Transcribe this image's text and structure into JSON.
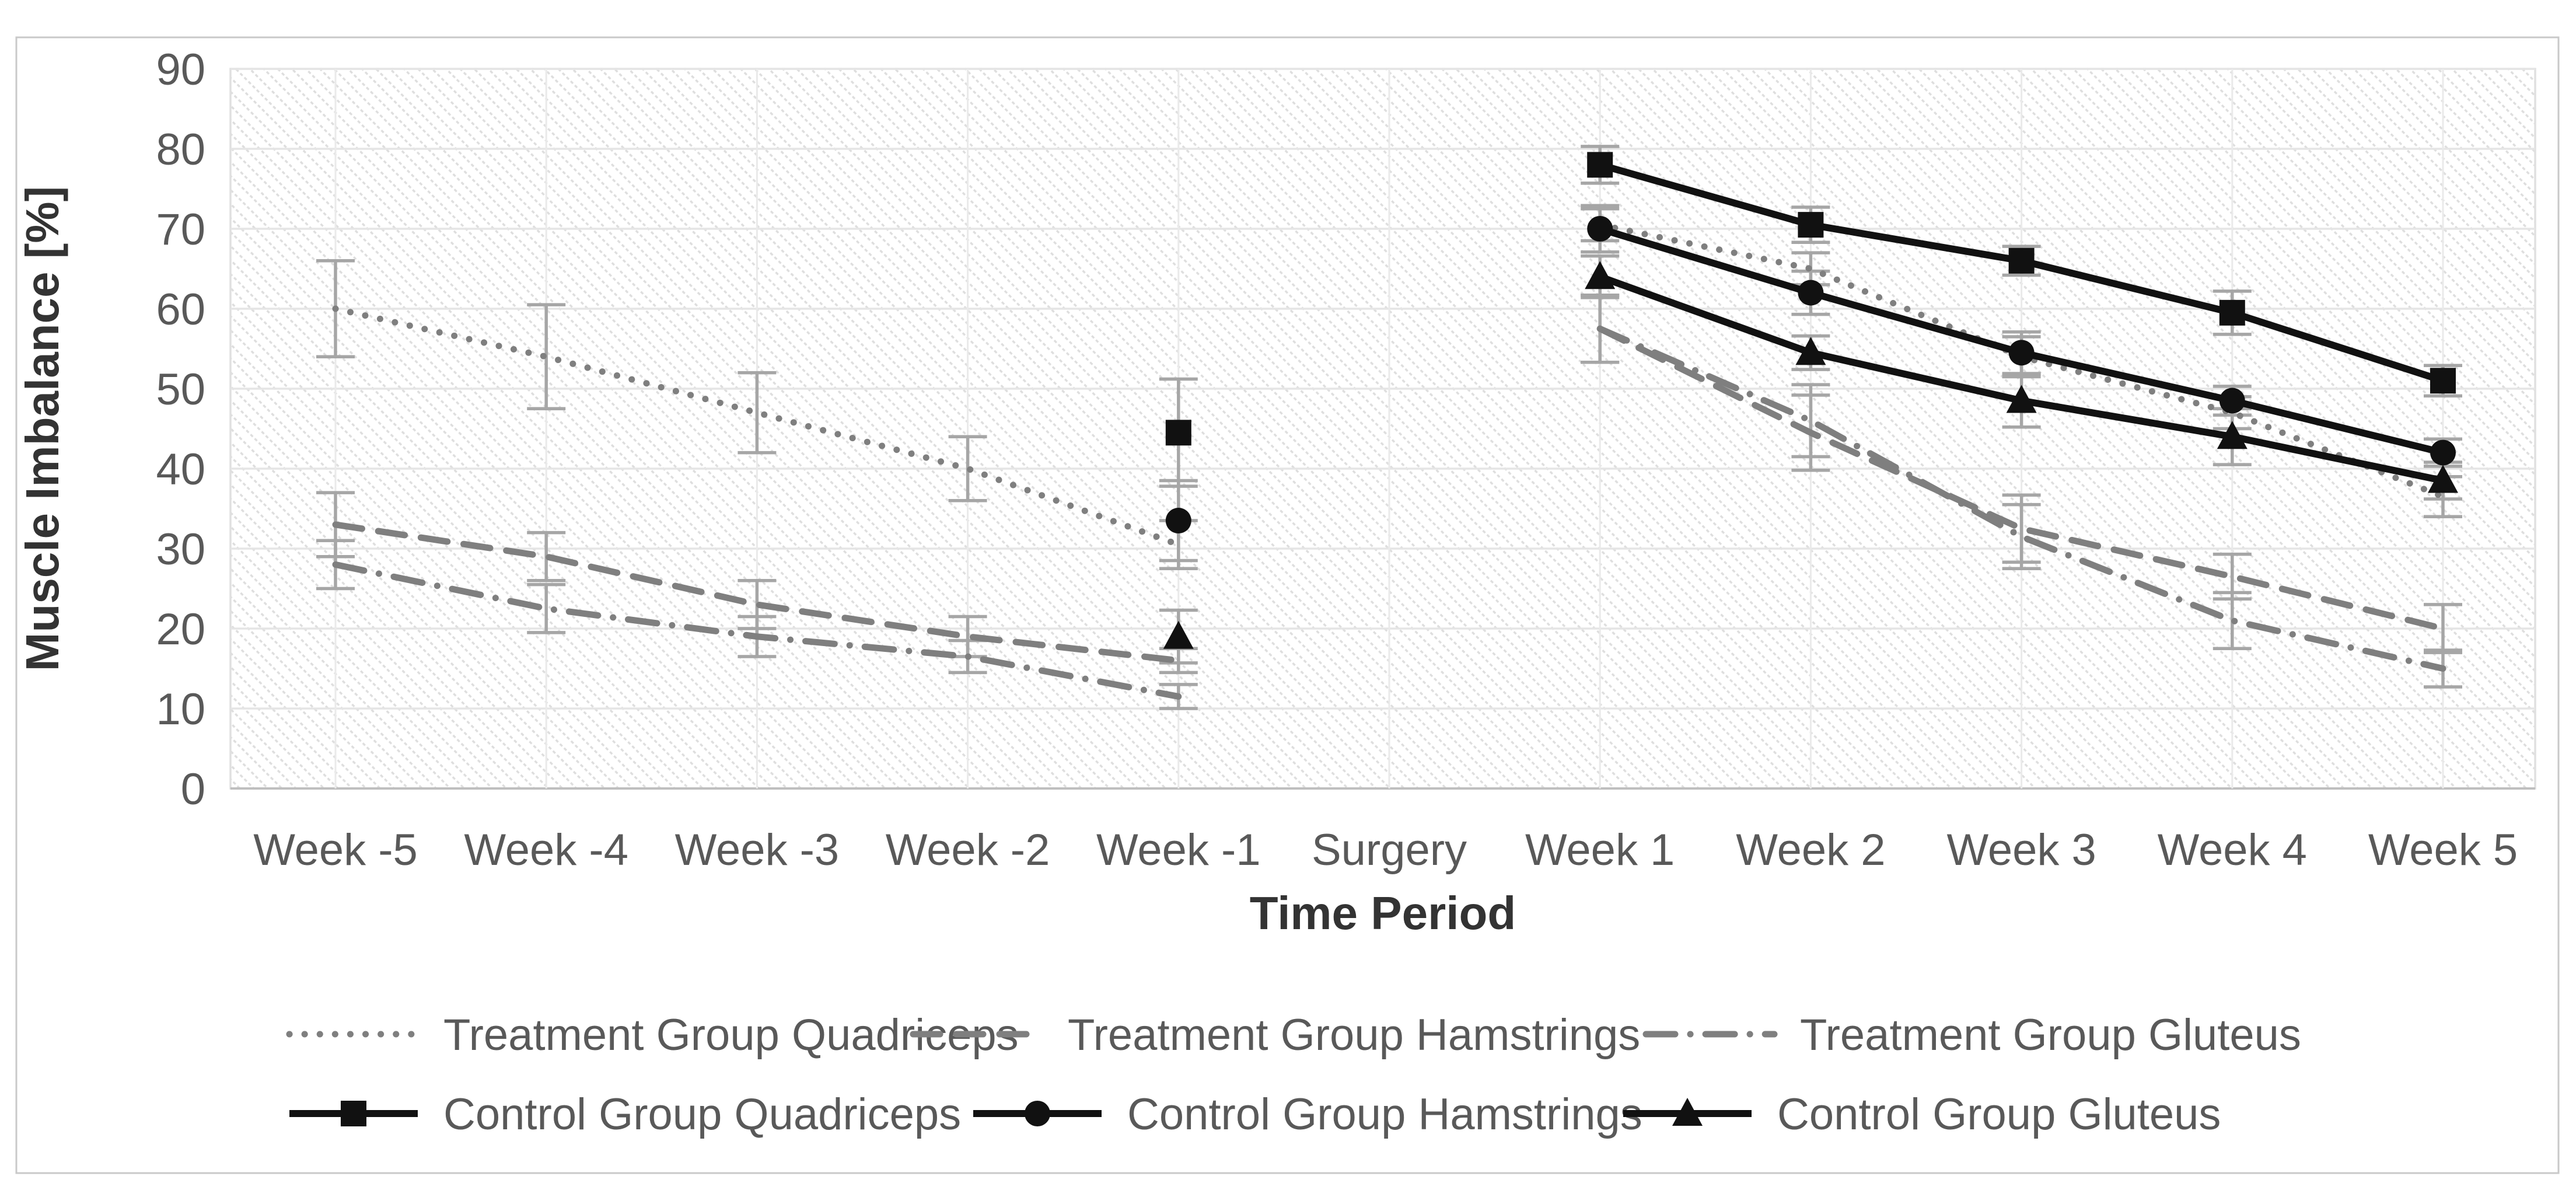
{
  "figure": {
    "background_color": "#ffffff",
    "border_color": "#c9c9c9",
    "plot_hatch_color": "#dedede",
    "gridline_color": "#e7e7e7",
    "error_bar_color": "#a6a6a6",
    "treatment_color": "#7f7f7f",
    "control_color": "#111111",
    "label_color": "#595959",
    "title_color": "#333333"
  },
  "chart_data": {
    "type": "line",
    "title": "",
    "xlabel": "Time Period",
    "ylabel": "Muscle Imbalance [%]",
    "ylim": [
      0,
      90
    ],
    "ytick_step": 10,
    "yticks": [
      90,
      80,
      70,
      60,
      50,
      40,
      30,
      20,
      10,
      0
    ],
    "categories": [
      "Week -5",
      "Week -4",
      "Week -3",
      "Week -2",
      "Week -1",
      "Surgery",
      "Week 1",
      "Week 2",
      "Week 3",
      "Week 4",
      "Week 5"
    ],
    "grid": "horizontal and vertical light gray gridlines, hatched plot area, gap at Surgery",
    "legend_position": "bottom, two rows",
    "series": [
      {
        "name": "Treatment Group Quadriceps",
        "group": "treatment",
        "line_style": "dotted",
        "marker": "none",
        "color": "#7f7f7f",
        "values": [
          60,
          54,
          47,
          40,
          30.5,
          null,
          70.5,
          65,
          54,
          47,
          36.5
        ],
        "error": [
          6,
          6.5,
          5,
          4,
          3,
          null,
          2,
          2,
          2.5,
          2,
          2.5
        ]
      },
      {
        "name": "Treatment Group Hamstrings",
        "group": "treatment",
        "line_style": "dashed",
        "marker": "none",
        "color": "#7f7f7f",
        "values": [
          33,
          29,
          23,
          19,
          16,
          null,
          57.5,
          44.5,
          32.5,
          26.5,
          20
        ],
        "error": [
          4,
          3,
          3,
          2.5,
          1.5,
          null,
          4.2,
          4.7,
          4.2,
          2.8,
          3
        ]
      },
      {
        "name": "Treatment Group Gluteus",
        "group": "treatment",
        "line_style": "dash-dot",
        "marker": "none",
        "color": "#7f7f7f",
        "values": [
          28,
          22.5,
          19,
          16.5,
          11.5,
          null,
          57.5,
          46,
          31.5,
          21,
          15
        ],
        "error": [
          3,
          3,
          2.5,
          2,
          1.5,
          null,
          4.2,
          4.5,
          4,
          3.5,
          2.3
        ]
      },
      {
        "name": "Control Group Quadriceps",
        "group": "control",
        "line_style": "solid",
        "marker": "square",
        "color": "#111111",
        "values": [
          null,
          null,
          null,
          null,
          44.5,
          null,
          78,
          70.5,
          66,
          59.5,
          51
        ],
        "error": [
          null,
          null,
          null,
          null,
          6.7,
          null,
          2.3,
          2.2,
          1.8,
          2.7,
          1.9
        ]
      },
      {
        "name": "Control Group Hamstrings",
        "group": "control",
        "line_style": "solid",
        "marker": "circle",
        "color": "#111111",
        "values": [
          null,
          null,
          null,
          null,
          33.5,
          null,
          70,
          62,
          54.5,
          48.5,
          42
        ],
        "error": [
          null,
          null,
          null,
          null,
          5,
          null,
          2.9,
          2.7,
          2.6,
          1.8,
          1.7
        ]
      },
      {
        "name": "Control Group Gluteus",
        "group": "control",
        "line_style": "solid",
        "marker": "triangle",
        "color": "#111111",
        "values": [
          null,
          null,
          null,
          null,
          19,
          null,
          64,
          54.5,
          48.5,
          44,
          38.5
        ],
        "error": [
          null,
          null,
          null,
          null,
          3.3,
          null,
          2.6,
          2.1,
          3.3,
          3.5,
          2.3
        ]
      }
    ]
  },
  "legend": {
    "rows": [
      [
        "Treatment Group Quadriceps",
        "Treatment Group Hamstrings",
        "Treatment Group Gluteus"
      ],
      [
        "Control Group Quadriceps",
        "Control Group Hamstrings",
        "Control Group Gluteus"
      ]
    ]
  }
}
